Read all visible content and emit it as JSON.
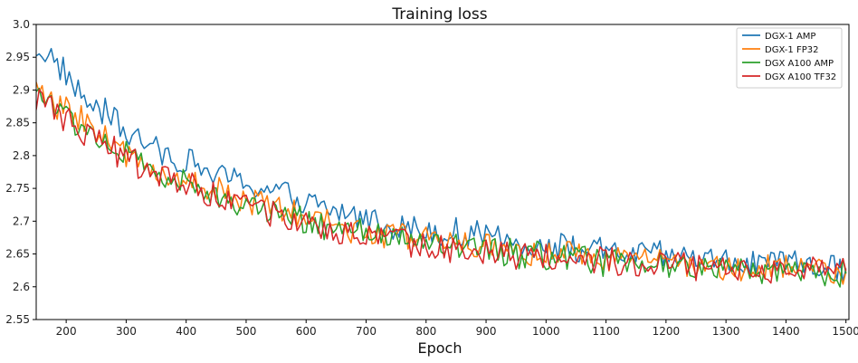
{
  "chart_data": {
    "type": "line",
    "title": "Training loss",
    "xlabel": "Epoch",
    "ylabel": "",
    "xlim": [
      150,
      1505
    ],
    "ylim": [
      2.55,
      3.0
    ],
    "xticks": [
      200,
      300,
      400,
      500,
      600,
      700,
      800,
      900,
      1000,
      1100,
      1200,
      1300,
      1400,
      1500
    ],
    "yticks": [
      2.55,
      2.6,
      2.65,
      2.7,
      2.75,
      2.8,
      2.85,
      2.9,
      2.95,
      3.0
    ],
    "ytick_labels": [
      "2.55",
      "2.6",
      "2.65",
      "2.7",
      "2.75",
      "2.8",
      "2.85",
      "2.9",
      "2.95",
      "3.0"
    ],
    "grid": false,
    "legend_position": "top-right",
    "x": [
      150,
      175,
      200,
      225,
      250,
      275,
      300,
      325,
      350,
      375,
      400,
      425,
      450,
      475,
      500,
      525,
      550,
      575,
      600,
      625,
      650,
      675,
      700,
      725,
      750,
      775,
      800,
      825,
      850,
      875,
      900,
      925,
      950,
      975,
      1000,
      1025,
      1050,
      1075,
      1100,
      1125,
      1150,
      1175,
      1200,
      1225,
      1250,
      1275,
      1300,
      1325,
      1350,
      1375,
      1400,
      1425,
      1450,
      1475,
      1500
    ],
    "series": [
      {
        "name": "DGX-1 AMP",
        "color": "#1f77b4",
        "values": [
          2.965,
          2.95,
          2.925,
          2.89,
          2.87,
          2.86,
          2.835,
          2.82,
          2.81,
          2.8,
          2.795,
          2.78,
          2.77,
          2.765,
          2.76,
          2.75,
          2.745,
          2.735,
          2.73,
          2.72,
          2.715,
          2.71,
          2.705,
          2.7,
          2.695,
          2.69,
          2.688,
          2.685,
          2.682,
          2.68,
          2.675,
          2.672,
          2.668,
          2.665,
          2.66,
          2.66,
          2.658,
          2.655,
          2.652,
          2.65,
          2.65,
          2.648,
          2.645,
          2.645,
          2.643,
          2.64,
          2.64,
          2.638,
          2.636,
          2.635,
          2.633,
          2.632,
          2.63,
          2.63,
          2.628
        ]
      },
      {
        "name": "DGX-1 FP32",
        "color": "#ff7f0e",
        "values": [
          2.9,
          2.88,
          2.87,
          2.855,
          2.84,
          2.82,
          2.8,
          2.79,
          2.78,
          2.77,
          2.76,
          2.755,
          2.75,
          2.74,
          2.73,
          2.725,
          2.72,
          2.71,
          2.705,
          2.7,
          2.695,
          2.69,
          2.685,
          2.68,
          2.678,
          2.675,
          2.672,
          2.67,
          2.666,
          2.663,
          2.66,
          2.658,
          2.655,
          2.652,
          2.65,
          2.648,
          2.646,
          2.644,
          2.642,
          2.64,
          2.638,
          2.636,
          2.634,
          2.633,
          2.632,
          2.63,
          2.63,
          2.628,
          2.627,
          2.626,
          2.625,
          2.625,
          2.624,
          2.624,
          2.623
        ]
      },
      {
        "name": "DGX A100 AMP",
        "color": "#2ca02c",
        "values": [
          2.9,
          2.875,
          2.86,
          2.845,
          2.83,
          2.815,
          2.8,
          2.785,
          2.775,
          2.765,
          2.755,
          2.745,
          2.74,
          2.73,
          2.725,
          2.72,
          2.715,
          2.705,
          2.7,
          2.695,
          2.69,
          2.685,
          2.68,
          2.676,
          2.673,
          2.67,
          2.667,
          2.664,
          2.661,
          2.658,
          2.655,
          2.652,
          2.65,
          2.648,
          2.645,
          2.643,
          2.641,
          2.64,
          2.638,
          2.636,
          2.635,
          2.633,
          2.632,
          2.63,
          2.63,
          2.628,
          2.627,
          2.626,
          2.625,
          2.624,
          2.623,
          2.622,
          2.622,
          2.621,
          2.62
        ]
      },
      {
        "name": "DGX A100 TF32",
        "color": "#d62728",
        "values": [
          2.89,
          2.87,
          2.855,
          2.84,
          2.825,
          2.81,
          2.795,
          2.785,
          2.775,
          2.765,
          2.755,
          2.745,
          2.738,
          2.73,
          2.722,
          2.716,
          2.71,
          2.703,
          2.698,
          2.692,
          2.687,
          2.682,
          2.678,
          2.674,
          2.671,
          2.668,
          2.665,
          2.662,
          2.659,
          2.656,
          2.654,
          2.651,
          2.649,
          2.647,
          2.645,
          2.643,
          2.641,
          2.64,
          2.638,
          2.637,
          2.635,
          2.634,
          2.633,
          2.632,
          2.631,
          2.63,
          2.629,
          2.628,
          2.627,
          2.626,
          2.626,
          2.625,
          2.625,
          2.624,
          2.624
        ]
      }
    ]
  }
}
